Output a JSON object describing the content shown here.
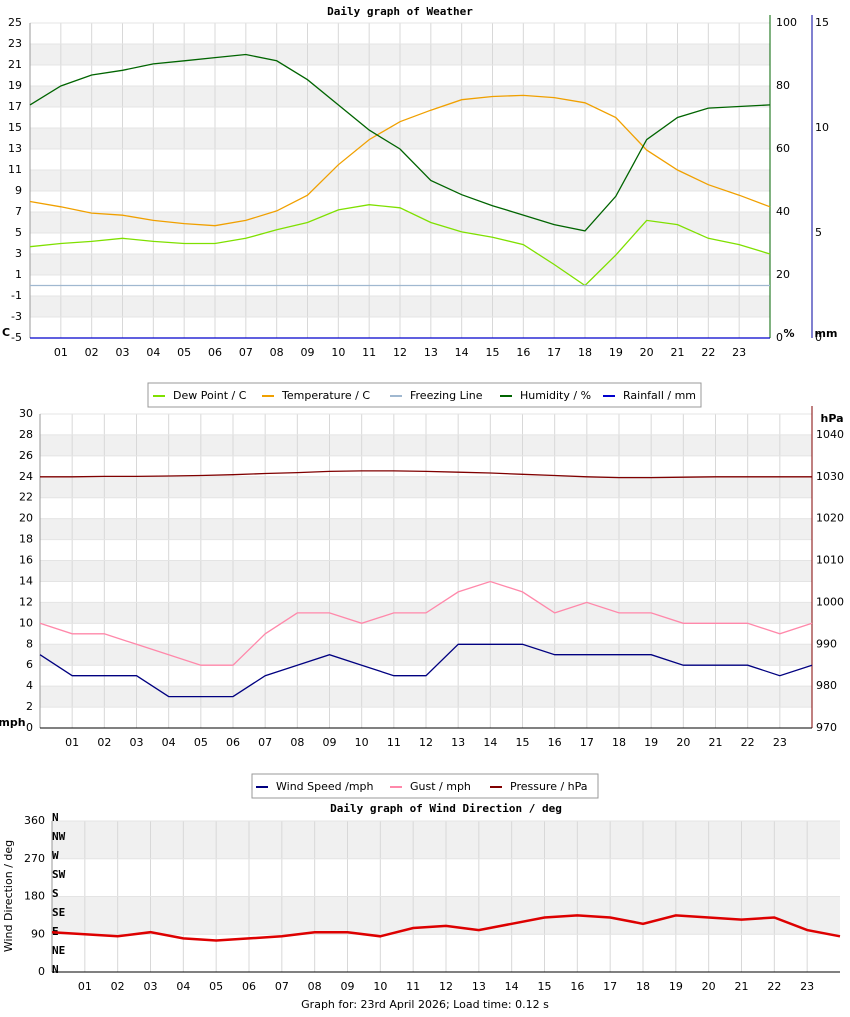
{
  "chart_data": [
    {
      "type": "line",
      "title": "Daily graph of Weather",
      "x": [
        0,
        1,
        2,
        3,
        4,
        5,
        6,
        7,
        8,
        9,
        10,
        11,
        12,
        13,
        14,
        15,
        16,
        17,
        18,
        19,
        20,
        21,
        22,
        23,
        24
      ],
      "xlim": [
        0,
        24
      ],
      "xticks": [
        {
          "value": 1,
          "label": "01"
        },
        {
          "value": 2,
          "label": "02"
        },
        {
          "value": 3,
          "label": "03"
        },
        {
          "value": 4,
          "label": "04"
        },
        {
          "value": 5,
          "label": "05"
        },
        {
          "value": 6,
          "label": "06"
        },
        {
          "value": 7,
          "label": "07"
        },
        {
          "value": 8,
          "label": "08"
        },
        {
          "value": 9,
          "label": "09"
        },
        {
          "value": 10,
          "label": "10"
        },
        {
          "value": 11,
          "label": "11"
        },
        {
          "value": 12,
          "label": "12"
        },
        {
          "value": 13,
          "label": "13"
        },
        {
          "value": 14,
          "label": "14"
        },
        {
          "value": 15,
          "label": "15"
        },
        {
          "value": 16,
          "label": "16"
        },
        {
          "value": 17,
          "label": "17"
        },
        {
          "value": 18,
          "label": "18"
        },
        {
          "value": 19,
          "label": "19"
        },
        {
          "value": 20,
          "label": "20"
        },
        {
          "value": 21,
          "label": "21"
        },
        {
          "value": 22,
          "label": "22"
        },
        {
          "value": 23,
          "label": "23"
        }
      ],
      "ylabel": "C",
      "ylim": [
        -5,
        25
      ],
      "yticks": [
        -5,
        -3,
        -1,
        1,
        3,
        5,
        7,
        9,
        11,
        13,
        15,
        17,
        19,
        21,
        23,
        25
      ],
      "ycolor": "#e8a000",
      "y2label": "%",
      "y2lim": [
        0,
        100
      ],
      "y2ticks": [
        0,
        20,
        40,
        60,
        80,
        100
      ],
      "y2color": "#006400",
      "y3label": "mm",
      "y3lim": [
        0,
        15
      ],
      "y3ticks": [
        0,
        5,
        10,
        15
      ],
      "y3color": "#0000a0",
      "grid": true,
      "series": [
        {
          "name": "Dew Point / C",
          "color": "#7fe000",
          "values": [
            3.7,
            4.0,
            4.2,
            4.5,
            4.2,
            4.0,
            4.0,
            4.5,
            5.3,
            6.0,
            7.2,
            7.7,
            7.4,
            6.0,
            5.1,
            4.6,
            3.9,
            2.0,
            0.0,
            2.9,
            6.2,
            5.8,
            4.5,
            3.9,
            3.0
          ]
        },
        {
          "name": "Temperature / C",
          "color": "#f0a000",
          "values": [
            8.0,
            7.5,
            6.9,
            6.7,
            6.2,
            5.9,
            5.7,
            6.2,
            7.1,
            8.6,
            11.5,
            13.9,
            15.6,
            16.7,
            17.7,
            18.0,
            18.1,
            17.9,
            17.4,
            16.0,
            12.9,
            11.0,
            9.6,
            8.6,
            7.5
          ]
        },
        {
          "name": "Freezing Line",
          "color": "#a0b8d0",
          "values": [
            0,
            0,
            0,
            0,
            0,
            0,
            0,
            0,
            0,
            0,
            0,
            0,
            0,
            0,
            0,
            0,
            0,
            0,
            0,
            0,
            0,
            0,
            0,
            0,
            0
          ]
        },
        {
          "name": "Humidity / %",
          "color": "#006400",
          "axis": "y2",
          "values": [
            74,
            80,
            83.5,
            85,
            87,
            88,
            89,
            90,
            88,
            82,
            74,
            66,
            60,
            50,
            45.5,
            42,
            39,
            36,
            34,
            45,
            63,
            70,
            73,
            73.5,
            74
          ]
        },
        {
          "name": "Rainfall / mm",
          "color": "#0000cc",
          "axis": "y3",
          "values": [
            0,
            0,
            0,
            0,
            0,
            0,
            0,
            0,
            0,
            0,
            0,
            0,
            0,
            0,
            0,
            0,
            0,
            0,
            0,
            0,
            0,
            0,
            0,
            0,
            0
          ]
        }
      ]
    },
    {
      "type": "line",
      "x": [
        0,
        1,
        2,
        3,
        4,
        5,
        6,
        7,
        8,
        9,
        10,
        11,
        12,
        13,
        14,
        15,
        16,
        17,
        18,
        19,
        20,
        21,
        22,
        23,
        24
      ],
      "xlim": [
        0,
        24
      ],
      "xticks": [
        {
          "value": 1,
          "label": "01"
        },
        {
          "value": 2,
          "label": "02"
        },
        {
          "value": 3,
          "label": "03"
        },
        {
          "value": 4,
          "label": "04"
        },
        {
          "value": 5,
          "label": "05"
        },
        {
          "value": 6,
          "label": "06"
        },
        {
          "value": 7,
          "label": "07"
        },
        {
          "value": 8,
          "label": "08"
        },
        {
          "value": 9,
          "label": "09"
        },
        {
          "value": 10,
          "label": "10"
        },
        {
          "value": 11,
          "label": "11"
        },
        {
          "value": 12,
          "label": "12"
        },
        {
          "value": 13,
          "label": "13"
        },
        {
          "value": 14,
          "label": "14"
        },
        {
          "value": 15,
          "label": "15"
        },
        {
          "value": 16,
          "label": "16"
        },
        {
          "value": 17,
          "label": "17"
        },
        {
          "value": 18,
          "label": "18"
        },
        {
          "value": 19,
          "label": "19"
        },
        {
          "value": 20,
          "label": "20"
        },
        {
          "value": 21,
          "label": "21"
        },
        {
          "value": 22,
          "label": "22"
        },
        {
          "value": 23,
          "label": "23"
        }
      ],
      "ylabel": "mph",
      "ylim": [
        0,
        30
      ],
      "yticks": [
        0,
        2,
        4,
        6,
        8,
        10,
        12,
        14,
        16,
        18,
        20,
        22,
        24,
        26,
        28,
        30
      ],
      "ycolor": "#000080",
      "y2label": "hPa",
      "y2lim": [
        970,
        1045
      ],
      "y2ticks": [
        970,
        980,
        990,
        1000,
        1010,
        1020,
        1030,
        1040
      ],
      "y2color": "#800000",
      "grid": true,
      "series": [
        {
          "name": "Wind Speed /mph",
          "color": "#000080",
          "values": [
            7,
            5,
            5,
            5,
            3,
            3,
            3,
            5,
            6,
            7,
            6,
            5,
            5,
            8,
            8,
            8,
            7,
            7,
            7,
            7,
            6,
            6,
            6,
            5,
            6
          ]
        },
        {
          "name": "Gust / mph",
          "color": "#ff88aa",
          "values": [
            10,
            9,
            9,
            8,
            7,
            6,
            6,
            9,
            11,
            11,
            10,
            11,
            11,
            13,
            14,
            13,
            11,
            12,
            11,
            11,
            10,
            10,
            10,
            9,
            10
          ]
        },
        {
          "name": "Pressure / hPa",
          "color": "#800000",
          "axis": "y2",
          "values": [
            1030,
            1030,
            1030.1,
            1030.1,
            1030.2,
            1030.3,
            1030.5,
            1030.8,
            1031,
            1031.3,
            1031.4,
            1031.4,
            1031.3,
            1031.1,
            1030.9,
            1030.6,
            1030.3,
            1030,
            1029.8,
            1029.8,
            1029.9,
            1030,
            1030,
            1030,
            1030
          ]
        }
      ]
    },
    {
      "type": "line",
      "title": "Daily graph of Wind Direction / deg",
      "x": [
        0,
        1,
        2,
        3,
        4,
        5,
        6,
        7,
        8,
        9,
        10,
        11,
        12,
        13,
        14,
        15,
        16,
        17,
        18,
        19,
        20,
        21,
        22,
        23,
        24
      ],
      "xlim": [
        0,
        24
      ],
      "xticks": [
        {
          "value": 1,
          "label": "01"
        },
        {
          "value": 2,
          "label": "02"
        },
        {
          "value": 3,
          "label": "03"
        },
        {
          "value": 4,
          "label": "04"
        },
        {
          "value": 5,
          "label": "05"
        },
        {
          "value": 6,
          "label": "06"
        },
        {
          "value": 7,
          "label": "07"
        },
        {
          "value": 8,
          "label": "08"
        },
        {
          "value": 9,
          "label": "09"
        },
        {
          "value": 10,
          "label": "10"
        },
        {
          "value": 11,
          "label": "11"
        },
        {
          "value": 12,
          "label": "12"
        },
        {
          "value": 13,
          "label": "13"
        },
        {
          "value": 14,
          "label": "14"
        },
        {
          "value": 15,
          "label": "15"
        },
        {
          "value": 16,
          "label": "16"
        },
        {
          "value": 17,
          "label": "17"
        },
        {
          "value": 18,
          "label": "18"
        },
        {
          "value": 19,
          "label": "19"
        },
        {
          "value": 20,
          "label": "20"
        },
        {
          "value": 21,
          "label": "21"
        },
        {
          "value": 22,
          "label": "22"
        },
        {
          "value": 23,
          "label": "23"
        }
      ],
      "ylabel": "Wind Direction / deg",
      "ylim": [
        0,
        360
      ],
      "yticks": [
        0,
        90,
        180,
        270,
        360
      ],
      "ycolor": "#dd0000",
      "compass": [
        "N",
        "NW",
        "W",
        "SW",
        "S",
        "SE",
        "E",
        "NE",
        "N"
      ],
      "grid": true,
      "series": [
        {
          "name": "Wind Direction",
          "color": "#dd0000",
          "values": [
            95,
            90,
            85,
            95,
            80,
            75,
            80,
            85,
            95,
            95,
            85,
            105,
            110,
            100,
            115,
            130,
            135,
            130,
            115,
            135,
            130,
            125,
            130,
            100,
            85
          ]
        }
      ]
    }
  ],
  "footer": "Graph for: 23rd April 2026; Load time: 0.12 s"
}
